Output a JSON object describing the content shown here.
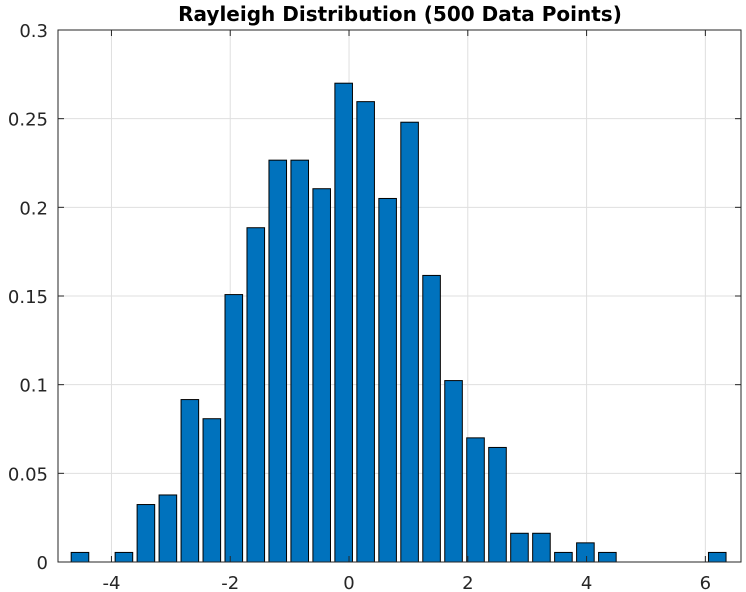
{
  "chart_data": {
    "type": "bar",
    "title": "Rayleigh Distribution (500 Data Points)",
    "xlabel": "",
    "ylabel": "",
    "grid": true,
    "xlim": [
      -4.9,
      6.6
    ],
    "ylim": [
      0,
      0.3
    ],
    "bar_color": "#0072BD",
    "axis_color": "#262626",
    "grid_color": "#DFDFDF",
    "x": [
      -4.53,
      -4.16,
      -3.79,
      -3.42,
      -3.05,
      -2.68,
      -2.31,
      -1.94,
      -1.57,
      -1.2,
      -0.83,
      -0.46,
      -0.09,
      0.28,
      0.65,
      1.02,
      1.39,
      1.76,
      2.13,
      2.5,
      2.87,
      3.24,
      3.61,
      3.98,
      4.35,
      4.72,
      5.09,
      5.46,
      5.83,
      6.2
    ],
    "values": [
      0.0054,
      0.0,
      0.0054,
      0.0324,
      0.0378,
      0.0916,
      0.0808,
      0.1508,
      0.1885,
      0.2266,
      0.2266,
      0.2105,
      0.27,
      0.2596,
      0.205,
      0.248,
      0.1616,
      0.1023,
      0.07,
      0.0646,
      0.0162,
      0.0162,
      0.0054,
      0.0108,
      0.0054,
      0.0,
      0.0,
      0.0,
      0.0,
      0.0054
    ],
    "xticks": [
      -4,
      -2,
      0,
      2,
      4,
      6
    ],
    "xtick_labels": [
      "-4",
      "-2",
      "0",
      "2",
      "4",
      "6"
    ],
    "yticks": [
      0,
      0.05,
      0.1,
      0.15,
      0.2,
      0.25,
      0.3
    ],
    "ytick_labels": [
      "0",
      "0.05",
      "0.1",
      "0.15",
      "0.2",
      "0.25",
      "0.3"
    ]
  }
}
